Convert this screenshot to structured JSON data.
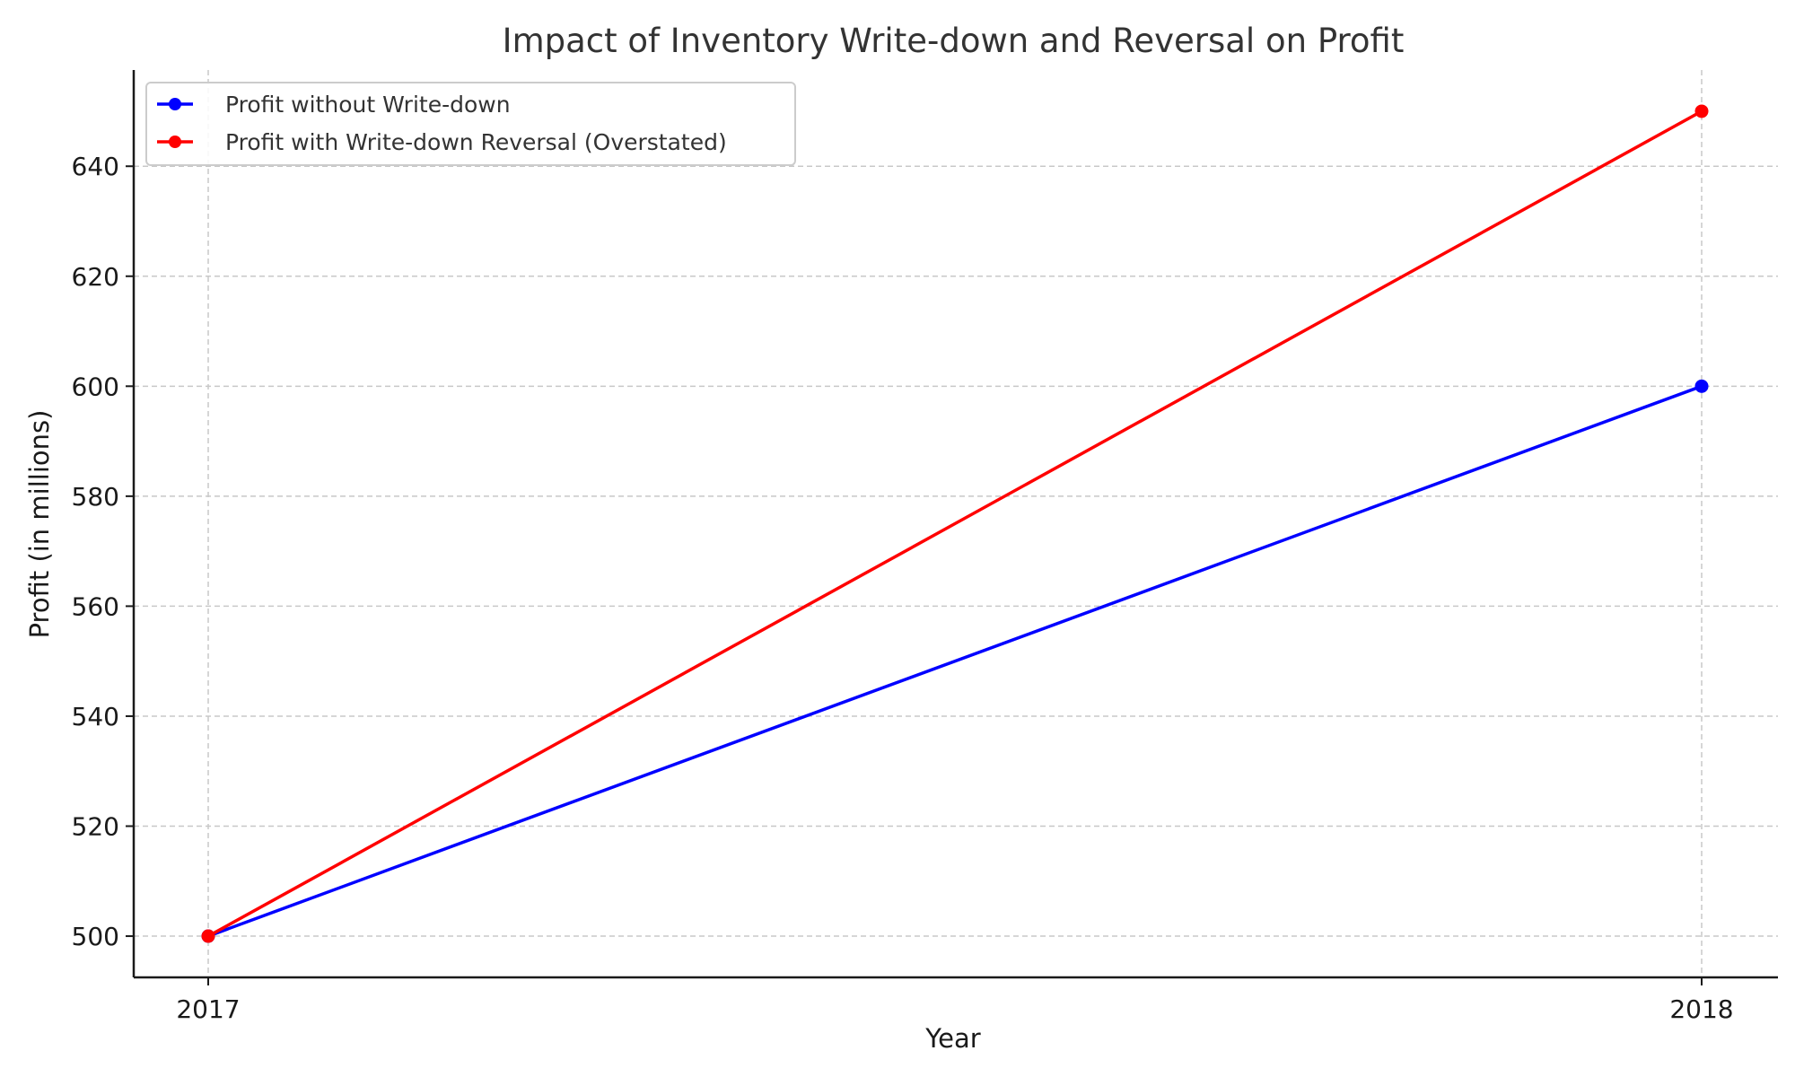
{
  "chart_data": {
    "type": "line",
    "title": "Impact of Inventory Write-down and Reversal on Profit",
    "xlabel": "Year",
    "ylabel": "Profit (in millions)",
    "categories": [
      "2017",
      "2018"
    ],
    "ylim": [
      492.5,
      657.5
    ],
    "yticks": [
      500,
      520,
      540,
      560,
      580,
      600,
      620,
      640
    ],
    "grid": true,
    "legend_position": "top-left",
    "series": [
      {
        "name": "Profit without Write-down",
        "values": [
          500,
          600
        ],
        "color": "#0000ff",
        "marker": "circle"
      },
      {
        "name": "Profit with Write-down Reversal (Overstated)",
        "values": [
          500,
          650
        ],
        "color": "#ff0000",
        "marker": "circle"
      }
    ]
  }
}
